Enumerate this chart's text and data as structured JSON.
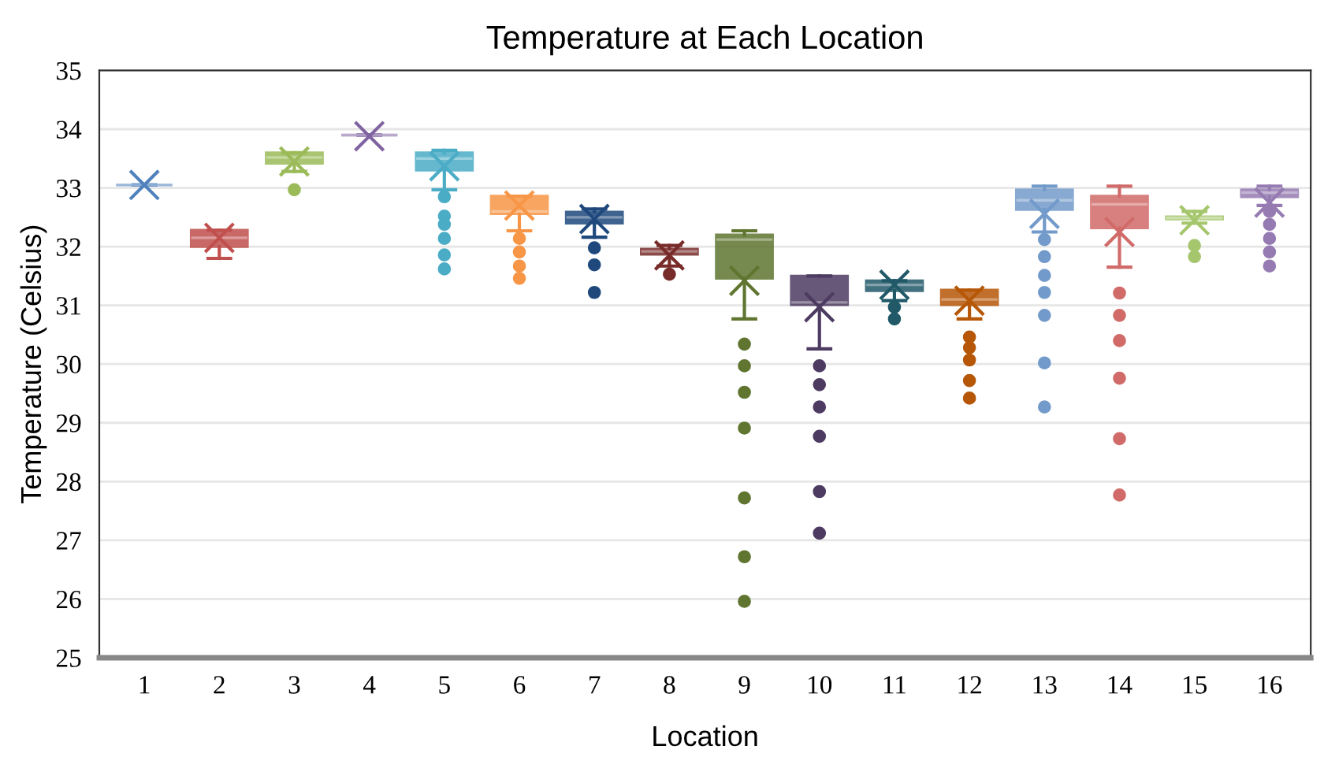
{
  "chart_data": {
    "type": "box",
    "title": "Temperature at Each Location",
    "xlabel": "Location",
    "ylabel": "Temperature (Celsius)",
    "categories": [
      "1",
      "2",
      "3",
      "4",
      "5",
      "6",
      "7",
      "8",
      "9",
      "10",
      "11",
      "12",
      "13",
      "14",
      "15",
      "16"
    ],
    "colors": [
      "#4f81bd",
      "#c0504d",
      "#9bbb59",
      "#8064a2",
      "#4bacc6",
      "#f79646",
      "#1f497d",
      "#772c2a",
      "#5f7530",
      "#4d3b62",
      "#215968",
      "#b65708",
      "#729aca",
      "#d16b69",
      "#a5c66d",
      "#957bb1"
    ],
    "boxes": [
      {
        "low": 33.05,
        "q1": 33.05,
        "median": 33.05,
        "q3": 33.05,
        "high": 33.05,
        "mean": 33.05
      },
      {
        "low": 31.8,
        "q1": 32.0,
        "median": 32.15,
        "q3": 32.28,
        "high": 32.28,
        "mean": 32.15
      },
      {
        "low": 33.28,
        "q1": 33.42,
        "median": 33.52,
        "q3": 33.6,
        "high": 33.6,
        "mean": 33.45,
        "outliers": [
          32.97
        ]
      },
      {
        "low": 33.9,
        "q1": 33.9,
        "median": 33.9,
        "q3": 33.9,
        "high": 33.9,
        "mean": 33.88
      },
      {
        "low": 32.97,
        "q1": 33.3,
        "median": 33.5,
        "q3": 33.6,
        "high": 33.64,
        "mean": 33.37,
        "outliers": [
          32.85,
          32.52,
          32.38,
          32.14,
          31.86,
          31.62
        ]
      },
      {
        "low": 32.27,
        "q1": 32.56,
        "median": 32.6,
        "q3": 32.86,
        "high": 32.86,
        "mean": 32.7,
        "outliers": [
          32.14,
          31.91,
          31.67,
          31.46
        ]
      },
      {
        "low": 32.16,
        "q1": 32.4,
        "median": 32.5,
        "q3": 32.59,
        "high": 32.64,
        "mean": 32.47,
        "outliers": [
          31.98,
          31.69,
          31.22
        ]
      },
      {
        "low": 31.67,
        "q1": 31.87,
        "median": 31.92,
        "q3": 31.96,
        "high": 32.02,
        "mean": 31.85,
        "outliers": [
          31.53
        ]
      },
      {
        "low": 30.77,
        "q1": 31.46,
        "median": 32.12,
        "q3": 32.2,
        "high": 32.27,
        "mean": 31.42,
        "outliers": [
          30.34,
          29.97,
          29.52,
          28.91,
          27.72,
          26.72,
          25.96
        ]
      },
      {
        "low": 30.26,
        "q1": 31.01,
        "median": 31.05,
        "q3": 31.5,
        "high": 31.5,
        "mean": 30.97,
        "outliers": [
          29.97,
          29.65,
          29.27,
          28.77,
          27.83,
          27.12
        ]
      },
      {
        "low": 31.08,
        "q1": 31.25,
        "median": 31.35,
        "q3": 31.42,
        "high": 31.42,
        "mean": 31.35,
        "outliers": [
          30.97,
          30.77
        ]
      },
      {
        "low": 30.77,
        "q1": 31.01,
        "median": 31.1,
        "q3": 31.26,
        "high": 31.26,
        "mean": 31.08,
        "outliers": [
          30.46,
          30.28,
          30.07,
          29.72,
          29.42
        ]
      },
      {
        "low": 32.25,
        "q1": 32.63,
        "median": 32.79,
        "q3": 32.97,
        "high": 33.03,
        "mean": 32.56,
        "outliers": [
          32.12,
          31.83,
          31.51,
          31.22,
          30.83,
          30.02,
          29.27
        ]
      },
      {
        "low": 31.65,
        "q1": 32.32,
        "median": 32.72,
        "q3": 32.86,
        "high": 33.03,
        "mean": 32.25,
        "outliers": [
          31.21,
          30.83,
          30.4,
          29.76,
          28.73,
          27.77
        ]
      },
      {
        "low": 32.4,
        "q1": 32.47,
        "median": 32.49,
        "q3": 32.51,
        "high": 32.6,
        "mean": 32.45,
        "outliers": [
          32.02,
          31.83
        ]
      },
      {
        "low": 32.7,
        "q1": 32.85,
        "median": 32.92,
        "q3": 32.97,
        "high": 33.03,
        "mean": 32.75,
        "outliers": [
          32.6,
          32.38,
          32.14,
          31.91,
          31.67
        ]
      }
    ],
    "ylim": [
      25,
      35
    ],
    "yticks": [
      25,
      26,
      27,
      28,
      29,
      30,
      31,
      32,
      33,
      34,
      35
    ],
    "grid": "y"
  }
}
